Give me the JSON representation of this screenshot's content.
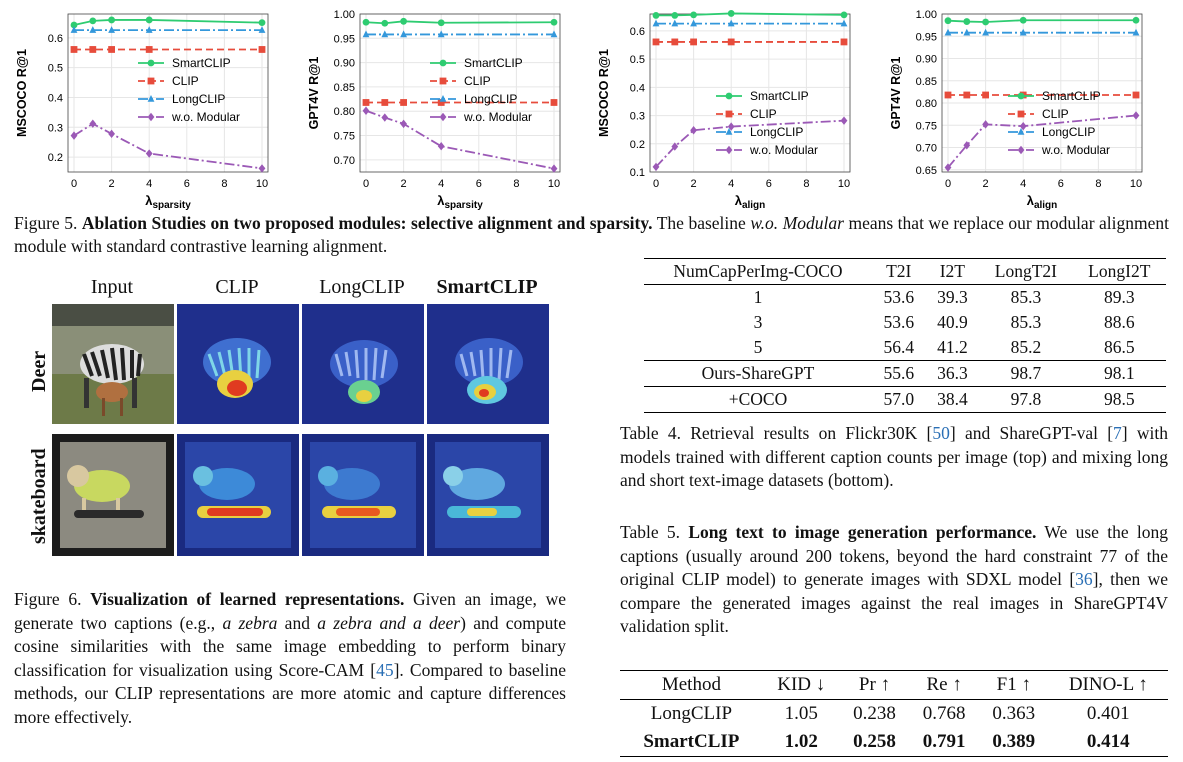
{
  "colors": {
    "smartclip": "#2ecc71",
    "clip": "#e74c3c",
    "longclip": "#3498db",
    "womodular": "#9b59b6"
  },
  "chart_data": [
    {
      "type": "line",
      "xlabel": "λsparsity",
      "xlabel_main": "λ",
      "xlabel_sub": "sparsity",
      "ylabel": "MSCOCO R@1",
      "x": [
        0,
        1,
        2,
        4,
        10
      ],
      "xticks": [
        0,
        2,
        4,
        6,
        8,
        10
      ],
      "xlim": [
        0,
        10
      ],
      "ylim": [
        0.15,
        0.68
      ],
      "yticks": [
        "0.2",
        "0.3",
        "0.4",
        "0.5",
        "0.6"
      ],
      "legend_position": "center-right",
      "series": [
        {
          "name": "SmartCLIP",
          "values": [
            0.643,
            0.657,
            0.66,
            0.66,
            0.651
          ]
        },
        {
          "name": "CLIP",
          "values": [
            0.561,
            0.561,
            0.561,
            0.561,
            0.561
          ]
        },
        {
          "name": "LongCLIP",
          "values": [
            0.626,
            0.626,
            0.626,
            0.626,
            0.626
          ]
        },
        {
          "name": "w.o. Modular",
          "values": [
            0.272,
            0.312,
            0.278,
            0.212,
            0.162
          ]
        }
      ]
    },
    {
      "type": "line",
      "xlabel": "λsparsity",
      "xlabel_main": "λ",
      "xlabel_sub": "sparsity",
      "ylabel": "GPT4V R@1",
      "x": [
        0,
        1,
        2,
        4,
        10
      ],
      "xticks": [
        0,
        2,
        4,
        6,
        8,
        10
      ],
      "xlim": [
        0,
        10
      ],
      "ylim": [
        0.675,
        1.0
      ],
      "yticks": [
        "0.70",
        "0.75",
        "0.80",
        "0.85",
        "0.90",
        "0.95",
        "1.00"
      ],
      "legend_position": "center-right",
      "series": [
        {
          "name": "SmartCLIP",
          "values": [
            0.983,
            0.981,
            0.985,
            0.982,
            0.983
          ]
        },
        {
          "name": "CLIP",
          "values": [
            0.818,
            0.818,
            0.818,
            0.818,
            0.818
          ]
        },
        {
          "name": "LongCLIP",
          "values": [
            0.958,
            0.958,
            0.958,
            0.958,
            0.958
          ]
        },
        {
          "name": "w.o. Modular",
          "values": [
            0.801,
            0.787,
            0.774,
            0.728,
            0.682
          ]
        }
      ]
    },
    {
      "type": "line",
      "xlabel": "λalign",
      "xlabel_main": "λ",
      "xlabel_sub": "align",
      "ylabel": "MSCOCO R@1",
      "x": [
        0,
        1,
        2,
        4,
        10
      ],
      "xticks": [
        0,
        2,
        4,
        6,
        8,
        10
      ],
      "xlim": [
        0,
        10
      ],
      "ylim": [
        0.1,
        0.66
      ],
      "yticks": [
        "0.1",
        "0.2",
        "0.3",
        "0.4",
        "0.5",
        "0.6"
      ],
      "legend_position": "lower-right",
      "series": [
        {
          "name": "SmartCLIP",
          "values": [
            0.655,
            0.655,
            0.657,
            0.662,
            0.657
          ]
        },
        {
          "name": "CLIP",
          "values": [
            0.561,
            0.561,
            0.561,
            0.561,
            0.561
          ]
        },
        {
          "name": "LongCLIP",
          "values": [
            0.626,
            0.626,
            0.626,
            0.626,
            0.626
          ]
        },
        {
          "name": "w.o. Modular",
          "values": [
            0.118,
            0.19,
            0.248,
            0.261,
            0.282
          ]
        }
      ]
    },
    {
      "type": "line",
      "xlabel": "λalign",
      "xlabel_main": "λ",
      "xlabel_sub": "align",
      "ylabel": "GPT4V R@1",
      "x": [
        0,
        1,
        2,
        4,
        10
      ],
      "xticks": [
        0,
        2,
        4,
        6,
        8,
        10
      ],
      "xlim": [
        0,
        10
      ],
      "ylim": [
        0.645,
        1.0
      ],
      "yticks": [
        "0.65",
        "0.70",
        "0.75",
        "0.80",
        "0.85",
        "0.90",
        "0.95",
        "1.00"
      ],
      "legend_position": "lower-right",
      "series": [
        {
          "name": "SmartCLIP",
          "values": [
            0.985,
            0.983,
            0.982,
            0.986,
            0.986
          ]
        },
        {
          "name": "CLIP",
          "values": [
            0.818,
            0.818,
            0.818,
            0.818,
            0.818
          ]
        },
        {
          "name": "LongCLIP",
          "values": [
            0.958,
            0.958,
            0.958,
            0.958,
            0.958
          ]
        },
        {
          "name": "w.o. Modular",
          "values": [
            0.655,
            0.705,
            0.752,
            0.748,
            0.772
          ]
        }
      ]
    }
  ],
  "fig5": {
    "label": "Figure 5.",
    "bold": "Ablation Studies on two proposed modules: selective alignment and sparsity.",
    "text1": "The baseline",
    "italic": "w.o. Modular",
    "text2": "means that we replace our modular alignment module with standard contrastive learning alignment."
  },
  "fig6": {
    "columns": [
      "Input",
      "CLIP",
      "LongCLIP",
      "SmartCLIP"
    ],
    "rows": [
      "Deer",
      "skateboard"
    ],
    "label": "Figure 6.",
    "bold": "Visualization of learned representations.",
    "text1": "Given an image, we generate two captions (e.g.,",
    "it1": "a zebra",
    "text2": "and",
    "it2": "a zebra and a deer",
    "text3": ") and compute cosine similarities with the same image embedding to perform binary classification for visualization using Score-CAM [",
    "ref": "45",
    "text4": "]. Compared to baseline methods, our CLIP representations are more atomic and capture differences more effectively."
  },
  "table4": {
    "headers": [
      "NumCapPerImg-COCO",
      "T2I",
      "I2T",
      "LongT2I",
      "LongI2T"
    ],
    "rows_top": [
      [
        "1",
        "53.6",
        "39.3",
        "85.3",
        "89.3"
      ],
      [
        "3",
        "53.6",
        "40.9",
        "85.3",
        "88.6"
      ],
      [
        "5",
        "56.4",
        "41.2",
        "85.2",
        "86.5"
      ]
    ],
    "rows_bottom": [
      [
        "Ours-ShareGPT",
        "55.6",
        "36.3",
        "98.7",
        "98.1"
      ],
      [
        "+COCO",
        "57.0",
        "38.4",
        "97.8",
        "98.5"
      ]
    ],
    "caption_a": "Table 4. Retrieval results on Flickr30K [",
    "ref1": "50",
    "caption_b": "] and ShareGPT-val [",
    "ref2": "7",
    "caption_c": "] with models trained with different caption counts per image (top) and mixing long and short text-image datasets (bottom)."
  },
  "table5": {
    "label": "Table 5.",
    "bold": "Long text to image generation performance.",
    "text1": "We use the long captions (usually around 200 tokens, beyond the hard constraint 77 of the original CLIP model) to generate images with SDXL model [",
    "ref": "36",
    "text2": "], then we compare the generated images against the real images in ShareGPT4V validation split.",
    "headers": [
      "Method",
      "KID ↓",
      "Pr ↑",
      "Re ↑",
      "F1 ↑",
      "DINO-L ↑"
    ],
    "rows": [
      [
        "LongCLIP",
        "1.05",
        "0.238",
        "0.768",
        "0.363",
        "0.401"
      ],
      [
        "SmartCLIP",
        "1.02",
        "0.258",
        "0.791",
        "0.389",
        "0.414"
      ]
    ]
  }
}
